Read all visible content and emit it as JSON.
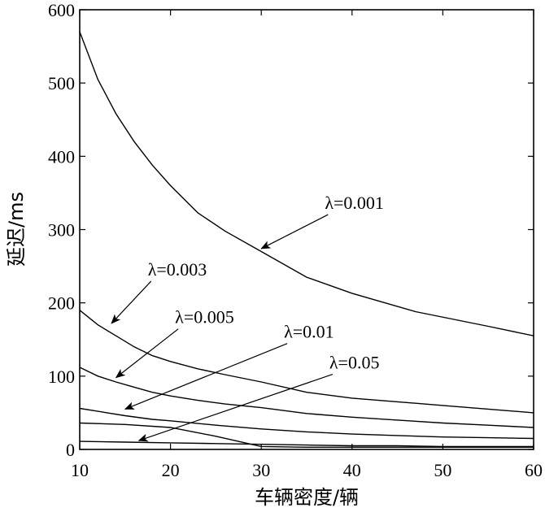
{
  "chart_data": {
    "type": "line",
    "title": "",
    "xlabel": "车辆密度/辆",
    "ylabel": "延迟/ms",
    "xlim": [
      10,
      60
    ],
    "ylim": [
      0,
      600
    ],
    "xticks": [
      10,
      20,
      30,
      40,
      50,
      60
    ],
    "yticks": [
      0,
      100,
      200,
      300,
      400,
      500,
      600
    ],
    "grid": false,
    "series": [
      {
        "name": "λ=0.001",
        "x": [
          10,
          12,
          14,
          16,
          18,
          20,
          23,
          26,
          30,
          35,
          40,
          47,
          55,
          60
        ],
        "y": [
          570,
          505,
          458,
          420,
          388,
          360,
          323,
          298,
          270,
          235,
          213,
          188,
          168,
          155
        ]
      },
      {
        "name": "λ=0.003",
        "x": [
          10,
          12,
          14,
          16,
          18,
          20,
          23,
          26,
          30,
          35,
          40,
          45,
          50,
          55,
          60
        ],
        "y": [
          190,
          170,
          155,
          140,
          128,
          120,
          110,
          102,
          92,
          78,
          70,
          65,
          60,
          55,
          50
        ]
      },
      {
        "name": "λ=0.005",
        "x": [
          10,
          12,
          14,
          16,
          18,
          20,
          23,
          26,
          30,
          35,
          40,
          45,
          50,
          55,
          60
        ],
        "y": [
          112,
          100,
          92,
          85,
          78,
          73,
          67,
          62,
          57,
          49,
          44,
          40,
          36,
          33,
          30
        ]
      },
      {
        "name": "λ=0.01",
        "x": [
          10,
          12,
          15,
          18,
          20,
          25,
          30,
          35,
          40,
          45,
          50,
          55,
          60
        ],
        "y": [
          56,
          52,
          46,
          41,
          39,
          33,
          28,
          24,
          21,
          19,
          17,
          16,
          15
        ]
      },
      {
        "name": "λ=0.05",
        "x": [
          10,
          15,
          20,
          25,
          30,
          35,
          40,
          45,
          50,
          55,
          60
        ],
        "y": [
          36,
          34,
          30,
          18,
          4,
          3,
          3,
          3,
          3,
          3,
          3
        ]
      },
      {
        "name": "",
        "x": [
          10,
          15,
          20,
          25,
          30,
          35,
          40,
          45,
          50,
          55,
          60
        ],
        "y": [
          11,
          10,
          9,
          8,
          7,
          6,
          5,
          5,
          4,
          4,
          4
        ]
      }
    ],
    "annotations": [
      {
        "text": "λ=0.001",
        "tx": 37,
        "ty": 336,
        "ax": 30,
        "ay": 274
      },
      {
        "text": "λ=0.003",
        "tx": 17.5,
        "ty": 245,
        "ax": 13.5,
        "ay": 172
      },
      {
        "text": "λ=0.005",
        "tx": 20.5,
        "ty": 180,
        "ax": 14,
        "ay": 98
      },
      {
        "text": "λ=0.01",
        "tx": 32.5,
        "ty": 160,
        "ax": 15,
        "ay": 55
      },
      {
        "text": "λ=0.05",
        "tx": 37.5,
        "ty": 118,
        "ax": 16.5,
        "ay": 12
      }
    ]
  }
}
